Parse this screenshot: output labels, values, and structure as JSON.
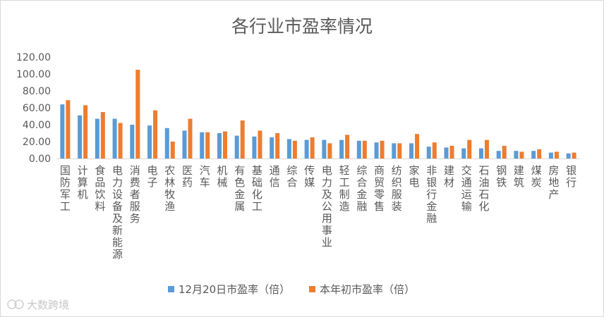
{
  "chart_data": {
    "type": "bar",
    "title": "各行业市盈率情况",
    "xlabel": "",
    "ylabel": "",
    "ylim": [
      0,
      120
    ],
    "yticks": [
      "0.00",
      "20.00",
      "40.00",
      "60.00",
      "80.00",
      "100.00",
      "120.00"
    ],
    "grid": false,
    "legend_position": "bottom",
    "categories": [
      "国防军工",
      "计算机",
      "食品饮料",
      "电力设备及新能源",
      "消费者服务",
      "电子",
      "农林牧渔",
      "医药",
      "汽车",
      "机械",
      "有色金属",
      "基础化工",
      "通信",
      "综合",
      "传媒",
      "电力及公用事业",
      "轻工制造",
      "综合金融",
      "商贸零售",
      "纺织服装",
      "家电",
      "非银行金融",
      "建材",
      "交通运输",
      "石油石化",
      "钢铁",
      "建筑",
      "煤炭",
      "房地产",
      "银行"
    ],
    "series": [
      {
        "name": "12月20日市盈率（倍）",
        "color": "#5b9bd5",
        "values": [
          64,
          51,
          47,
          47,
          40,
          39,
          36,
          33,
          31,
          30,
          27,
          26,
          25,
          23,
          22,
          22,
          22,
          21,
          19,
          18,
          18,
          14,
          13,
          12,
          12,
          9,
          9,
          9,
          7,
          6
        ]
      },
      {
        "name": "本年初市盈率（倍）",
        "color": "#ed7d31",
        "values": [
          69,
          63,
          55,
          42,
          105,
          57,
          20,
          47,
          31,
          32,
          45,
          33,
          30,
          21,
          25,
          18,
          28,
          21,
          21,
          18,
          29,
          19,
          15,
          22,
          22,
          15,
          8,
          11,
          8,
          7
        ]
      }
    ]
  },
  "watermark": "大数跨境"
}
